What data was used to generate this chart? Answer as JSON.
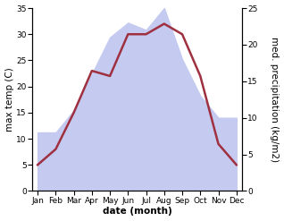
{
  "months": [
    "Jan",
    "Feb",
    "Mar",
    "Apr",
    "May",
    "Jun",
    "Jul",
    "Aug",
    "Sep",
    "Oct",
    "Nov",
    "Dec"
  ],
  "month_positions": [
    0,
    1,
    2,
    3,
    4,
    5,
    6,
    7,
    8,
    9,
    10,
    11
  ],
  "temperature": [
    5,
    8,
    15,
    23,
    22,
    30,
    30,
    32,
    30,
    22,
    9,
    5
  ],
  "precipitation": [
    8,
    8,
    11,
    16,
    21,
    23,
    22,
    25,
    18,
    13,
    10,
    10
  ],
  "temp_color": "#9e3040",
  "precip_color_fill": "#c5caf0",
  "temp_ylim": [
    0,
    35
  ],
  "precip_ylim": [
    0,
    25
  ],
  "temp_yticks": [
    0,
    5,
    10,
    15,
    20,
    25,
    30,
    35
  ],
  "precip_yticks": [
    0,
    5,
    10,
    15,
    20,
    25
  ],
  "xlabel": "date (month)",
  "ylabel_left": "max temp (C)",
  "ylabel_right": "med. precipitation (kg/m2)",
  "bg_color": "#ffffff",
  "label_fontsize": 7.5,
  "tick_fontsize": 6.5,
  "linewidth": 1.8
}
